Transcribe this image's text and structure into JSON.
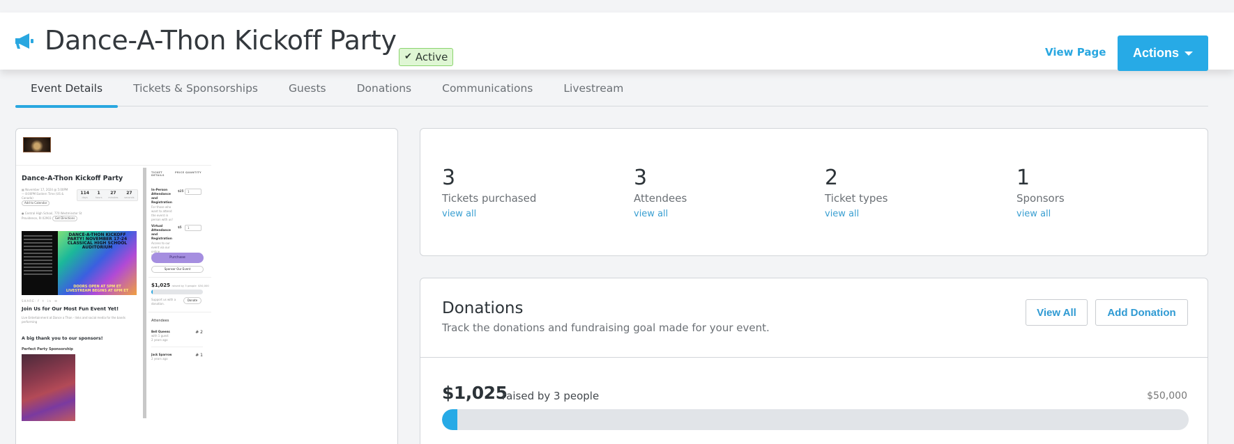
{
  "header": {
    "icon": "megaphone-icon",
    "title": "Dance-A-Thon Kickoff Party",
    "status_badge": {
      "icon": "check-icon",
      "label": "Active"
    },
    "view_page_label": "View Page",
    "actions_label": "Actions"
  },
  "tabs": [
    {
      "label": "Event Details",
      "active": true
    },
    {
      "label": "Tickets & Sponsorships",
      "active": false
    },
    {
      "label": "Guests",
      "active": false
    },
    {
      "label": "Donations",
      "active": false
    },
    {
      "label": "Communications",
      "active": false
    },
    {
      "label": "Livestream",
      "active": false
    }
  ],
  "preview": {
    "title": "Dance-A-Thon Kickoff Party",
    "date_text": "November 17, 2024 @ 5:00PM — 8:00PM Eastern Time (US & Canada)",
    "add_to_calendar": "Add to Calendar",
    "countdown": [
      {
        "value": "114",
        "unit": "days"
      },
      {
        "value": "1",
        "unit": "hours"
      },
      {
        "value": "27",
        "unit": "minutes"
      },
      {
        "value": "27",
        "unit": "seconds"
      }
    ],
    "location": "Central High School, 770 Westminster St Providence, RI 02903",
    "get_directions": "Get Directions",
    "poster": {
      "headline": "DANCE-A-THON KICKOFF PARTY! NOVEMBER 17-24 CLASSICAL HIGH SCHOOL AUDITORIUM",
      "footer": "DOORS OPEN AT 5PM ET LIVESTREAM BEGINS AT 6PM ET"
    },
    "share_label": "SHARE:",
    "heading": "Join Us for Our Most Fun Event Yet!",
    "description": "Live Entertainment at Dance a Thon - links and social media for the bands performing",
    "sponsors_heading": "A big thank you to our sponsors!",
    "sponsorship_name": "Perfect Party Sponsorship",
    "ticket_headers": {
      "details": "TICKET DETAILS",
      "price": "PRICE",
      "quantity": "QUANTITY"
    },
    "tickets": [
      {
        "name": "In-Person Attendance and Registration",
        "desc": "For those who want to attend the event in person with us!",
        "price": "$25",
        "qty": "1"
      },
      {
        "name": "Virtual Attendance and Registration",
        "desc": "Access to our event via our online livestream!",
        "price": "$5",
        "qty": "1"
      }
    ],
    "purchase_label": "Purchase",
    "sponsor_label": "Sponsor Our Event",
    "raised_amount": "$1,025",
    "raised_text": "raised by 3 people",
    "raised_goal": "$50,000",
    "support_text": "Support us with a donation.",
    "donate_label": "Donate",
    "attendees_heading": "Attendees",
    "attendees": [
      {
        "name": "Bell Queens",
        "sub": "with 1 guest",
        "time": "2 years ago",
        "count": "# 2"
      },
      {
        "name": "Jack Sparrow",
        "sub": "",
        "time": "2 years ago",
        "count": "# 1"
      }
    ]
  },
  "stats": [
    {
      "value": "3",
      "label": "Tickets purchased",
      "link": "view all"
    },
    {
      "value": "3",
      "label": "Attendees",
      "link": "view all"
    },
    {
      "value": "2",
      "label": "Ticket types",
      "link": "view all"
    },
    {
      "value": "1",
      "label": "Sponsors",
      "link": "view all"
    }
  ],
  "donations": {
    "title": "Donations",
    "subtitle": "Track the donations and fundraising goal made for your event.",
    "view_all_label": "View All",
    "add_donation_label": "Add Donation",
    "amount": "$1,025",
    "raised_text": "raised by 3 people",
    "goal": "$50,000",
    "progress_percent": 2.05
  },
  "colors": {
    "accent": "#27aae6",
    "badge_bg": "#dff6d4",
    "badge_border": "#8ad56d"
  }
}
